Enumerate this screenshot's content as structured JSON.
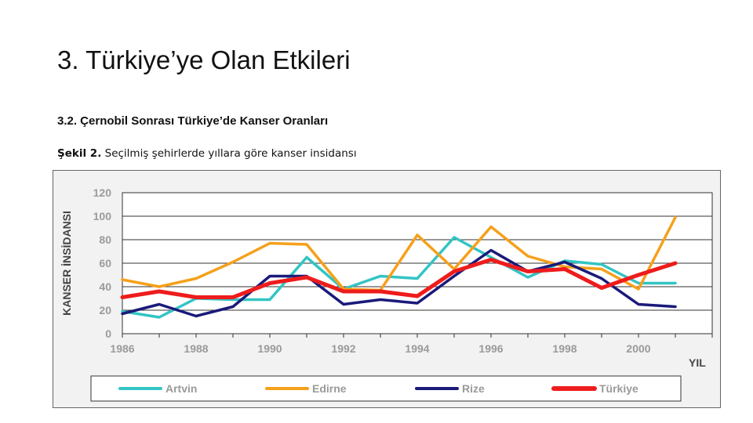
{
  "slide": {
    "title": "3. Türkiye’ye Olan Etkileri",
    "section_heading": "3.2. Çernobil Sonrası Türkiye’de Kanser Oranları",
    "caption_prefix": "Şekil 2.",
    "caption_text": " Seçilmiş şehirlerde yıllara göre kanser insidansı"
  },
  "chart_data": {
    "type": "line",
    "title": "",
    "xlabel": "YIL",
    "ylabel": "KANSER İNSİDANSI",
    "ylim": [
      0,
      120
    ],
    "xlim": [
      1986,
      2002
    ],
    "y_ticks": [
      0,
      20,
      40,
      60,
      80,
      100,
      120
    ],
    "x_ticks": [
      1986,
      1988,
      1990,
      1992,
      1994,
      1996,
      1998,
      2000
    ],
    "grid": "horizontal",
    "legend_position": "bottom",
    "series": [
      {
        "name": "Artvin",
        "color": "#33c4c4",
        "x": [
          1986,
          1987,
          1988,
          1989,
          1990,
          1991,
          1992,
          1993,
          1994,
          1995,
          1996,
          1997,
          1998,
          1999,
          2000,
          2001
        ],
        "y": [
          19,
          14,
          30,
          29,
          29,
          65,
          38,
          49,
          47,
          82,
          65,
          48,
          62,
          59,
          43,
          43
        ]
      },
      {
        "name": "Edirne",
        "color": "#f5a01a",
        "x": [
          1986,
          1987,
          1988,
          1989,
          1990,
          1991,
          1992,
          1993,
          1994,
          1995,
          1996,
          1997,
          1998,
          1999,
          2000,
          2001
        ],
        "y": [
          46,
          40,
          47,
          61,
          77,
          76,
          38,
          37,
          84,
          55,
          91,
          66,
          57,
          55,
          38,
          99
        ]
      },
      {
        "name": "Rize",
        "color": "#1a1a7a",
        "x": [
          1986,
          1987,
          1988,
          1989,
          1990,
          1991,
          1992,
          1993,
          1994,
          1995,
          1996,
          1997,
          1998,
          1999,
          2000,
          2001
        ],
        "y": [
          17,
          25,
          15,
          23,
          49,
          49,
          25,
          29,
          26,
          49,
          71,
          53,
          61,
          47,
          25,
          23
        ]
      },
      {
        "name": "Türkiye",
        "color": "#ee1c1c",
        "x": [
          1986,
          1987,
          1988,
          1989,
          1990,
          1991,
          1992,
          1993,
          1994,
          1995,
          1996,
          1997,
          1998,
          1999,
          2000,
          2001
        ],
        "y": [
          31,
          36,
          31,
          31,
          43,
          48,
          36,
          36,
          32,
          53,
          63,
          53,
          55,
          39,
          50,
          60
        ]
      }
    ]
  }
}
